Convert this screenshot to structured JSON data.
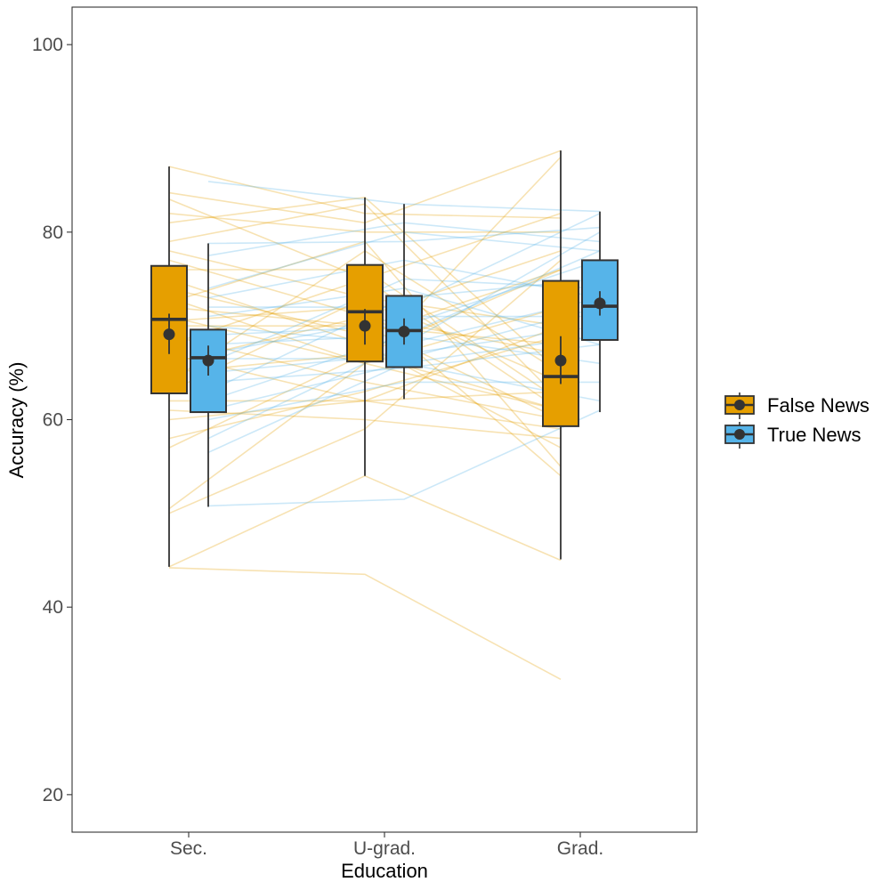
{
  "chart_data": {
    "type": "box",
    "xlabel": "Education",
    "ylabel": "Accuracy (%)",
    "ylim": [
      16,
      104
    ],
    "yticks": [
      20,
      40,
      60,
      80,
      100
    ],
    "categories": [
      "Sec.",
      "U-grad.",
      "Grad."
    ],
    "grid": false,
    "legend_position": "right",
    "series": [
      {
        "name": "False News",
        "color": "#E69F00",
        "boxes": [
          {
            "category": "Sec.",
            "min": 44.3,
            "q1": 62.8,
            "median": 70.7,
            "q3": 76.4,
            "max": 87.0,
            "mean": 69.1,
            "mean_lo": 67.0,
            "mean_hi": 71.3
          },
          {
            "category": "U-grad.",
            "min": 54.0,
            "q1": 66.2,
            "median": 71.5,
            "q3": 76.5,
            "max": 83.7,
            "mean": 70.0,
            "mean_lo": 68.0,
            "mean_hi": 71.8
          },
          {
            "category": "Grad.",
            "min": 45.1,
            "q1": 59.3,
            "median": 64.6,
            "q3": 74.8,
            "max": 88.7,
            "mean": 66.3,
            "mean_lo": 63.8,
            "mean_hi": 68.9
          }
        ]
      },
      {
        "name": "True News",
        "color": "#56B4E9",
        "boxes": [
          {
            "category": "Sec.",
            "min": 50.7,
            "q1": 60.8,
            "median": 66.6,
            "q3": 69.6,
            "max": 78.8,
            "mean": 66.3,
            "mean_lo": 64.7,
            "mean_hi": 67.9
          },
          {
            "category": "U-grad.",
            "min": 62.2,
            "q1": 65.6,
            "median": 69.5,
            "q3": 73.2,
            "max": 83.0,
            "mean": 69.4,
            "mean_lo": 68.0,
            "mean_hi": 70.8
          },
          {
            "category": "Grad.",
            "min": 60.8,
            "q1": 68.5,
            "median": 72.1,
            "q3": 77.0,
            "max": 82.2,
            "mean": 72.4,
            "mean_lo": 71.1,
            "mean_hi": 73.7
          }
        ]
      }
    ],
    "individual_lines": {
      "False News": [
        [
          87.0,
          82.0,
          81.5
        ],
        [
          84.2,
          81.0,
          88.7
        ],
        [
          83.5,
          75.0,
          82.0
        ],
        [
          82.0,
          80.0,
          80.0
        ],
        [
          81.0,
          83.7,
          65.0
        ],
        [
          79.0,
          83.0,
          62.0
        ],
        [
          78.0,
          73.0,
          70.0
        ],
        [
          77.0,
          71.0,
          78.0
        ],
        [
          76.0,
          76.0,
          62.0
        ],
        [
          75.0,
          68.0,
          57.0
        ],
        [
          74.0,
          69.0,
          76.0
        ],
        [
          73.0,
          66.0,
          72.0
        ],
        [
          72.5,
          79.0,
          55.0
        ],
        [
          72.0,
          70.0,
          68.0
        ],
        [
          71.0,
          66.0,
          61.0
        ],
        [
          70.5,
          72.0,
          54.0
        ],
        [
          70.0,
          70.0,
          60.0
        ],
        [
          69.0,
          64.0,
          60.0
        ],
        [
          68.0,
          75.0,
          61.0
        ],
        [
          67.0,
          62.0,
          59.0
        ],
        [
          66.0,
          71.0,
          67.0
        ],
        [
          65.0,
          67.0,
          76.0
        ],
        [
          64.0,
          78.0,
          65.0
        ],
        [
          63.0,
          73.0,
          64.0
        ],
        [
          62.0,
          62.0,
          70.0
        ],
        [
          61.0,
          60.0,
          58.0
        ],
        [
          60.0,
          62.0,
          63.0
        ],
        [
          58.0,
          63.0,
          69.0
        ],
        [
          57.0,
          67.0,
          61.0
        ],
        [
          50.5,
          66.0,
          88.0
        ],
        [
          50.0,
          59.0,
          77.0
        ],
        [
          44.3,
          54.0,
          45.0
        ],
        [
          44.2,
          43.5,
          32.3
        ]
      ],
      "True News": [
        [
          85.4,
          83.0,
          82.2
        ],
        [
          78.8,
          79.0,
          80.5
        ],
        [
          77.5,
          81.0,
          79.0
        ],
        [
          74.0,
          80.0,
          78.0
        ],
        [
          73.0,
          77.0,
          73.0
        ],
        [
          72.0,
          72.0,
          82.0
        ],
        [
          71.0,
          74.0,
          68.0
        ],
        [
          70.0,
          68.0,
          80.0
        ],
        [
          69.0,
          70.0,
          77.0
        ],
        [
          68.0,
          69.0,
          66.0
        ],
        [
          67.0,
          71.0,
          71.0
        ],
        [
          66.5,
          66.5,
          72.0
        ],
        [
          66.0,
          75.0,
          74.0
        ],
        [
          65.0,
          67.0,
          70.0
        ],
        [
          64.0,
          65.5,
          68.0
        ],
        [
          63.0,
          73.0,
          75.0
        ],
        [
          62.0,
          69.0,
          78.0
        ],
        [
          61.0,
          66.0,
          69.0
        ],
        [
          60.0,
          64.0,
          64.0
        ],
        [
          58.0,
          68.0,
          73.0
        ],
        [
          56.5,
          66.0,
          62.0
        ],
        [
          50.8,
          51.5,
          61.0
        ]
      ]
    }
  }
}
